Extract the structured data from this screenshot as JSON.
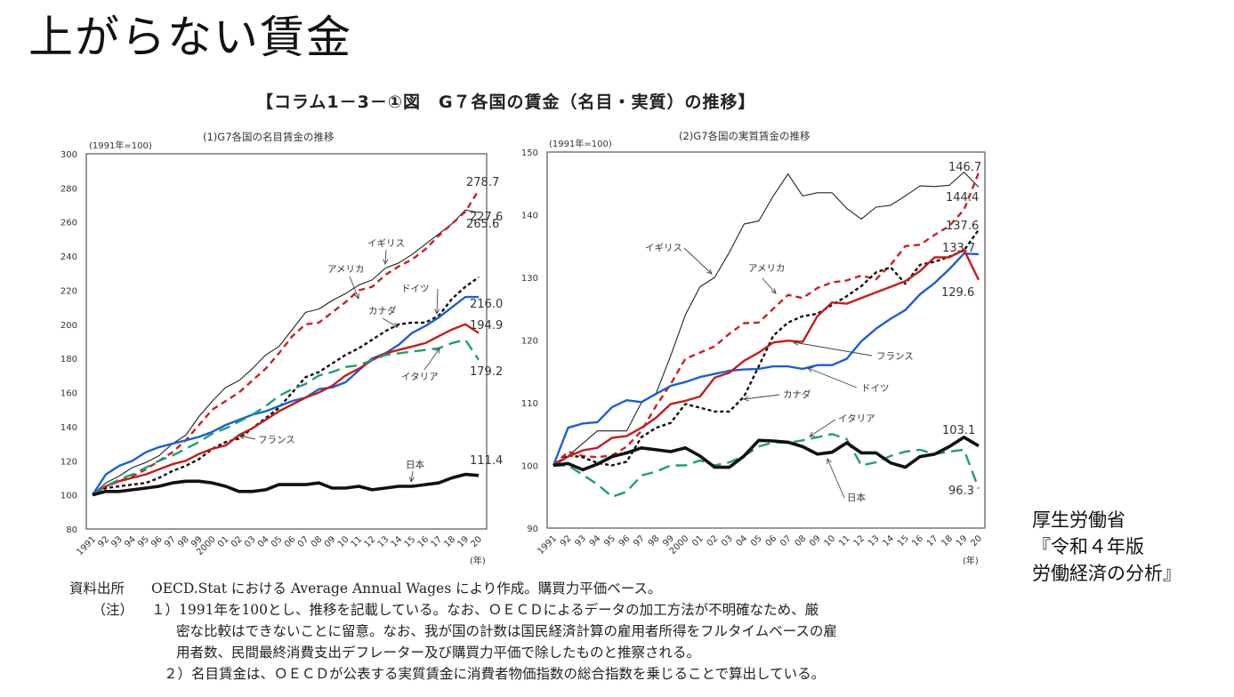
{
  "slide": {
    "title": "上がらない賃金",
    "figure_title": "【コラム1－3－①図　G７各国の賃金（名目・実質）の推移】",
    "source_lines": [
      "厚生労働省",
      "『令和４年版",
      "労働経済の分析』"
    ]
  },
  "notes": {
    "source_label": "資料出所",
    "source_text": "OECD.Stat における Average Annual Wages により作成。購買力平価ベース。",
    "note_label": "（注）",
    "note1_line1": "１）1991年を100とし、推移を記載している。なお、ＯＥＣＤによるデータの加工方法が不明確なため、厳",
    "note1_line2": "密な比較はできないことに留意。なお、我が国の計数は国民経済計算の雇用者所得をフルタイムベースの雇",
    "note1_line3": "用者数、民間最終消費支出デフレーター及び購買力平価で除したものと推察される。",
    "note2": "２）名目賃金は、ＯＥＣＤが公表する実質賃金に消費者物価指数の総合指数を乗じることで算出している。"
  },
  "chart_data": [
    {
      "type": "line",
      "title": "(1)G7各国の名目賃金の推移",
      "ylabel": "(1991年=100)",
      "xlabel": "(年)",
      "ylim": [
        80,
        300
      ],
      "yticks": [
        80,
        100,
        120,
        140,
        160,
        180,
        200,
        220,
        240,
        260,
        280,
        300
      ],
      "x": [
        1991,
        1992,
        1993,
        1994,
        1995,
        1996,
        1997,
        1998,
        1999,
        2000,
        2001,
        2002,
        2003,
        2004,
        2005,
        2006,
        2007,
        2008,
        2009,
        2010,
        2011,
        2012,
        2013,
        2014,
        2015,
        2016,
        2017,
        2018,
        2019,
        2020
      ],
      "xticklabels": [
        "1991",
        "92",
        "93",
        "94",
        "95",
        "96",
        "97",
        "98",
        "99",
        "2000",
        "01",
        "02",
        "03",
        "04",
        "05",
        "06",
        "07",
        "08",
        "09",
        "10",
        "11",
        "12",
        "13",
        "14",
        "15",
        "16",
        "17",
        "18",
        "19",
        "20"
      ],
      "grid": false,
      "series": [
        {
          "name": "イギリス",
          "color": "#222222",
          "style": "thin-solid",
          "values": [
            100,
            107,
            111,
            116,
            119,
            123,
            130,
            135,
            146,
            155,
            163,
            167,
            174,
            182,
            187,
            197,
            207,
            209,
            214,
            218,
            223,
            226,
            233,
            236,
            241,
            247,
            253,
            259,
            267,
            265.6
          ],
          "end_label": "265.6"
        },
        {
          "name": "アメリカ",
          "color": "#cc1f1f",
          "style": "dashed",
          "values": [
            100,
            105,
            108,
            111,
            115,
            120,
            125,
            132,
            141,
            150,
            155,
            160,
            167,
            174,
            183,
            193,
            200,
            201,
            207,
            213,
            220,
            222,
            229,
            234,
            238,
            244,
            252,
            259,
            266,
            278.7
          ],
          "end_label": "278.7"
        },
        {
          "name": "カナダ",
          "color": "#111111",
          "style": "dotted",
          "values": [
            100,
            104,
            105,
            106,
            107,
            110,
            114,
            117,
            121,
            127,
            131,
            133,
            139,
            145,
            151,
            160,
            169,
            172,
            177,
            182,
            186,
            191,
            196,
            200,
            201,
            201,
            205,
            215,
            222,
            227.6
          ],
          "end_label": "227.6"
        },
        {
          "name": "ドイツ",
          "color": "#1a5fd6",
          "style": "solid",
          "values": [
            100,
            112,
            117,
            120,
            125,
            128,
            130,
            132,
            134,
            137,
            141,
            144,
            147,
            149,
            152,
            155,
            157,
            162,
            163,
            166,
            173,
            180,
            183,
            188,
            195,
            199,
            204,
            210,
            216,
            216.0
          ],
          "end_label": "216.0"
        },
        {
          "name": "フランス",
          "color": "#c81b1b",
          "style": "solid",
          "values": [
            100,
            105,
            108,
            110,
            112,
            115,
            118,
            120,
            124,
            127,
            129,
            135,
            139,
            144,
            149,
            153,
            157,
            160,
            164,
            170,
            174,
            179,
            183,
            185,
            187,
            189,
            193,
            197,
            200,
            194.9
          ],
          "end_label": "194.9"
        },
        {
          "name": "イタリア",
          "color": "#1d9e78",
          "style": "long-dashed",
          "values": [
            100,
            105,
            109,
            112,
            116,
            120,
            123,
            127,
            131,
            136,
            139,
            143,
            147,
            152,
            158,
            162,
            165,
            170,
            172,
            175,
            176,
            179,
            182,
            183,
            184,
            185,
            186,
            189,
            191,
            179.2
          ],
          "end_label": "179.2"
        },
        {
          "name": "日本",
          "color": "#111111",
          "style": "thick-solid",
          "values": [
            100,
            102,
            102,
            103,
            104,
            105,
            107,
            108,
            108,
            107,
            105,
            102,
            102,
            103,
            106,
            106,
            106,
            107,
            104,
            104,
            105,
            103,
            104,
            105,
            105,
            106,
            107,
            110,
            112,
            111.4
          ],
          "end_label": "111.4"
        }
      ]
    },
    {
      "type": "line",
      "title": "(2)G7各国の実質賃金の推移",
      "ylabel": "(1991年=100)",
      "xlabel": "(年)",
      "ylim": [
        90,
        150
      ],
      "yticks": [
        90,
        100,
        110,
        120,
        130,
        140,
        150
      ],
      "x": [
        1991,
        1992,
        1993,
        1994,
        1995,
        1996,
        1997,
        1998,
        1999,
        2000,
        2001,
        2002,
        2003,
        2004,
        2005,
        2006,
        2007,
        2008,
        2009,
        2010,
        2011,
        2012,
        2013,
        2014,
        2015,
        2016,
        2017,
        2018,
        2019,
        2020
      ],
      "xticklabels": [
        "1991",
        "92",
        "93",
        "94",
        "95",
        "96",
        "97",
        "98",
        "99",
        "2000",
        "01",
        "02",
        "03",
        "04",
        "05",
        "06",
        "07",
        "08",
        "09",
        "10",
        "11",
        "12",
        "13",
        "14",
        "15",
        "16",
        "17",
        "18",
        "19",
        "20"
      ],
      "grid": false,
      "series": [
        {
          "name": "イギリス",
          "color": "#222222",
          "style": "thin-solid",
          "values": [
            100,
            101.5,
            103.5,
            105.5,
            105.5,
            105.5,
            110,
            111.5,
            117.5,
            124,
            128.5,
            130,
            134,
            138.5,
            139,
            143,
            146.5,
            143,
            143.5,
            143.5,
            141,
            139.3,
            141.2,
            141.5,
            143,
            144.6,
            144.5,
            144.7,
            146.8,
            144.4
          ],
          "end_label": "144.4"
        },
        {
          "name": "アメリカ",
          "color": "#cc1f1f",
          "style": "dashed",
          "values": [
            100,
            102.2,
            101.5,
            101.3,
            101.6,
            103,
            105.5,
            109.5,
            113,
            117,
            118,
            119,
            121,
            122.7,
            122.8,
            125,
            127.2,
            126.7,
            128.3,
            129.2,
            129.5,
            130.3,
            129.7,
            132,
            135,
            135.2,
            136.8,
            138.2,
            140.8,
            146.7
          ],
          "end_label": "146.7"
        },
        {
          "name": "カナダ",
          "color": "#111111",
          "style": "dotted",
          "values": [
            100,
            101.6,
            101.3,
            100.4,
            100,
            100.6,
            104.5,
            106,
            106.8,
            109.8,
            109.2,
            108.6,
            108.6,
            111,
            115.8,
            120.7,
            122.8,
            123.8,
            124.2,
            125.6,
            127,
            128.6,
            130.8,
            131.6,
            129,
            132,
            132.5,
            133.3,
            134.3,
            137.6
          ],
          "end_label": "137.6"
        },
        {
          "name": "ドイツ",
          "color": "#1a5fd6",
          "style": "solid",
          "values": [
            100,
            106,
            106.7,
            106.9,
            109.3,
            110.4,
            110.1,
            111.4,
            112.7,
            113.3,
            114.1,
            114.6,
            115.1,
            115.3,
            115.4,
            115.8,
            115.8,
            115.4,
            116,
            116,
            117,
            119.8,
            121.8,
            123.4,
            124.8,
            127.3,
            129.1,
            131.3,
            133.8,
            133.7
          ],
          "end_label": "133.7"
        },
        {
          "name": "フランス",
          "color": "#c81b1b",
          "style": "solid",
          "values": [
            100,
            101.4,
            102.4,
            102.8,
            104.4,
            104.7,
            106,
            107.6,
            109.8,
            110.3,
            111,
            114,
            114.8,
            116.7,
            118,
            119.6,
            119.9,
            119.7,
            123.8,
            126,
            125.8,
            126.7,
            127.6,
            128.5,
            129.4,
            131,
            133.2,
            133.2,
            134.4,
            129.6
          ],
          "end_label": "129.6"
        },
        {
          "name": "イタリア",
          "color": "#1d9e78",
          "style": "long-dashed",
          "values": [
            100,
            100,
            98.5,
            97,
            95,
            95.8,
            98.4,
            99,
            100,
            100,
            100.8,
            100,
            100.5,
            101.5,
            103,
            103.7,
            103.6,
            104,
            104.5,
            105,
            104.2,
            100,
            100.5,
            101.5,
            102.2,
            102.5,
            101.8,
            102.2,
            102.5,
            96.3
          ],
          "end_label": "96.3"
        },
        {
          "name": "日本",
          "color": "#111111",
          "style": "thick-solid",
          "values": [
            100,
            100.3,
            99.3,
            100.2,
            101.4,
            102,
            102.8,
            102.5,
            102.2,
            102.8,
            101.5,
            99.7,
            99.7,
            101.5,
            104,
            103.9,
            103.7,
            103,
            101.8,
            102.1,
            103.6,
            102,
            102,
            100.4,
            99.7,
            101.4,
            101.8,
            103,
            104.5,
            103.1
          ],
          "end_label": "103.1"
        }
      ],
      "annotations": [
        "イギリス",
        "アメリカ",
        "フランス",
        "ドイツ",
        "カナダ",
        "イタリア",
        "日本"
      ]
    }
  ]
}
